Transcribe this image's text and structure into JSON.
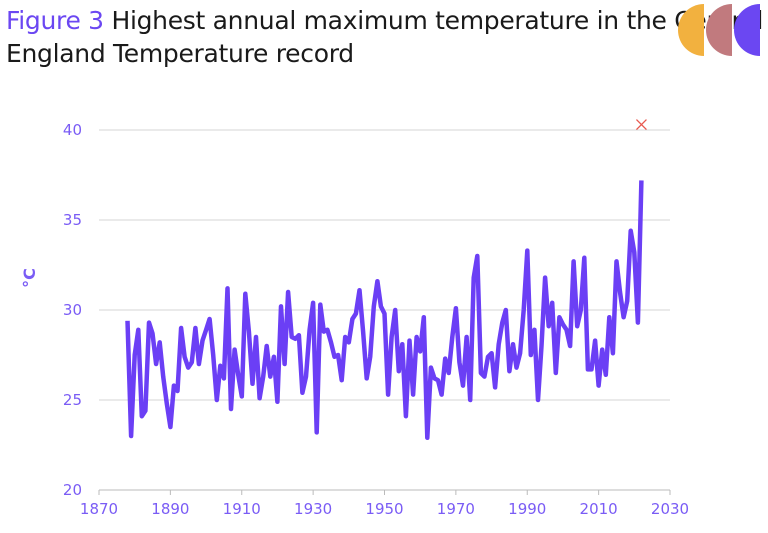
{
  "header": {
    "figure_label": "Figure 3",
    "title": "Highest annual maximum temperature in the Central England Temperature record"
  },
  "logo": {
    "colors": [
      "#f2b13f",
      "#c17a7e",
      "#6b47f2"
    ]
  },
  "colors": {
    "line": "#6b3ff5",
    "marker": "#e8584e",
    "tick_text": "#7a5cf5",
    "grid": "#d4d4d4"
  },
  "chart_data": {
    "type": "line",
    "title": "Highest annual maximum temperature in the Central England Temperature record",
    "xlabel": "",
    "ylabel": "°C",
    "xlim": [
      1870,
      2030
    ],
    "ylim": [
      20,
      40
    ],
    "xticks": [
      1870,
      1890,
      1910,
      1930,
      1950,
      1970,
      1990,
      2010,
      2030
    ],
    "yticks": [
      20,
      25,
      30,
      35,
      40
    ],
    "grid": "horizontal",
    "x_start": 1878,
    "values": [
      29.4,
      23.0,
      27.5,
      28.9,
      24.1,
      24.4,
      29.3,
      28.7,
      27.0,
      28.2,
      26.3,
      24.8,
      23.5,
      25.8,
      25.5,
      29.0,
      27.4,
      26.8,
      27.1,
      29.0,
      27.0,
      28.3,
      28.9,
      29.5,
      27.5,
      25.0,
      26.9,
      26.2,
      31.2,
      24.5,
      27.8,
      26.4,
      25.2,
      30.9,
      28.8,
      25.9,
      28.5,
      25.1,
      26.3,
      28.0,
      26.3,
      27.4,
      24.9,
      30.2,
      27.0,
      31.0,
      28.5,
      28.4,
      28.6,
      25.4,
      26.3,
      28.9,
      30.4,
      23.2,
      30.3,
      28.8,
      28.9,
      28.2,
      27.4,
      27.5,
      26.1,
      28.5,
      28.2,
      29.5,
      29.8,
      31.1,
      28.8,
      26.2,
      27.4,
      30.2,
      31.6,
      30.2,
      29.8,
      25.3,
      28.5,
      30.0,
      26.6,
      28.1,
      24.1,
      28.3,
      25.3,
      28.5,
      27.7,
      29.6,
      22.9,
      26.8,
      26.2,
      26.1,
      25.3,
      27.3,
      26.5,
      28.5,
      30.1,
      27.1,
      25.8,
      28.5,
      25.0,
      31.8,
      33.0,
      26.5,
      26.3,
      27.4,
      27.6,
      25.7,
      28.1,
      29.3,
      30.0,
      26.6,
      28.1,
      26.8,
      27.6,
      30.0,
      33.3,
      27.5,
      28.9,
      25.0,
      28.0,
      31.8,
      29.1,
      30.4,
      26.5,
      29.6,
      29.2,
      28.9,
      28.0,
      32.7,
      29.1,
      30.0,
      32.9,
      26.7,
      26.7,
      28.3,
      25.8,
      27.8,
      26.4,
      29.6,
      27.6,
      32.7,
      31.0,
      29.6,
      30.5,
      34.4,
      33.2,
      29.3,
      37.2
    ],
    "marker_point": {
      "x": 2022,
      "y": 40.3,
      "symbol": "x"
    }
  }
}
